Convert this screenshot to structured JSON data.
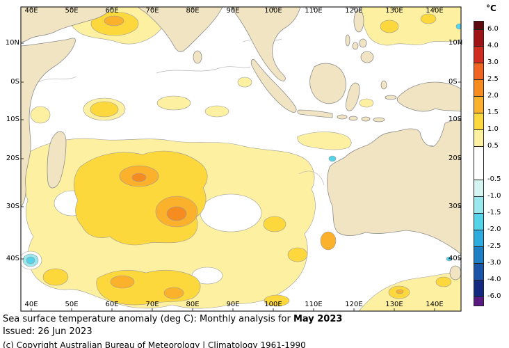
{
  "map": {
    "longitude_labels_top": [
      "40E",
      "50E",
      "60E",
      "70E",
      "80E",
      "90E",
      "100E",
      "110E",
      "120E",
      "130E",
      "140E"
    ],
    "longitude_labels_bottom": [
      "40E",
      "50E",
      "60E",
      "70E",
      "80E",
      "90E",
      "100E",
      "110E",
      "120E",
      "130E",
      "140E"
    ],
    "latitude_labels_left": [
      "10N",
      "0S",
      "10S",
      "20S",
      "30S",
      "40S"
    ],
    "latitude_labels_right": [
      "10N",
      "0S",
      "10S",
      "20S",
      "30S",
      "40S"
    ],
    "land_color": "#f0e4c2",
    "ocean_color": "#ffffff"
  },
  "colorbar": {
    "unit": "°C",
    "tick_labels": [
      "6.0",
      "4.0",
      "3.0",
      "2.5",
      "2.0",
      "1.5",
      "1.0",
      "0.5",
      "-0.5",
      "-1.0",
      "-1.5",
      "-2.0",
      "-2.5",
      "-3.0",
      "-4.0",
      "-6.0"
    ],
    "segment_colors": [
      "#5e0b10",
      "#9e1315",
      "#d02c20",
      "#ef6420",
      "#f68c20",
      "#fbb12c",
      "#fdd83c",
      "#fdf0a0",
      "#ffffff",
      "#d4f5f0",
      "#9ae8ee",
      "#55d3e8",
      "#2cabdc",
      "#1f7fc4",
      "#1b55a8",
      "#142a80",
      "#5a1a80"
    ]
  },
  "captions": {
    "title_prefix": "Sea surface temperature anomaly (deg C): Monthly analysis for ",
    "title_month": "May 2023",
    "issued": "Issued: 26 Jun 2023",
    "copyright": "(c) Copyright Australian Bureau of Meteorology | Climatology 1961-1990"
  }
}
